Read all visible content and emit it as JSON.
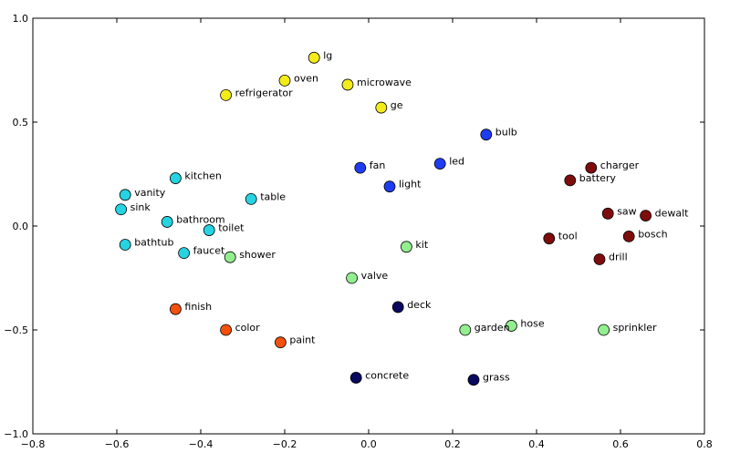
{
  "chart_data": {
    "type": "scatter",
    "title": "",
    "xlabel": "",
    "ylabel": "",
    "xlim": [
      -0.8,
      0.8
    ],
    "ylim": [
      -1.0,
      1.0
    ],
    "grid": false,
    "x_ticks": [
      {
        "value": -0.8,
        "label": "−0.8"
      },
      {
        "value": -0.6,
        "label": "−0.6"
      },
      {
        "value": -0.4,
        "label": "−0.4"
      },
      {
        "value": -0.2,
        "label": "−0.2"
      },
      {
        "value": 0.0,
        "label": "0.0"
      },
      {
        "value": 0.2,
        "label": "0.2"
      },
      {
        "value": 0.4,
        "label": "0.4"
      },
      {
        "value": 0.6,
        "label": "0.6"
      },
      {
        "value": 0.8,
        "label": "0.8"
      }
    ],
    "y_ticks": [
      {
        "value": -1.0,
        "label": "−1.0"
      },
      {
        "value": -0.5,
        "label": "−0.5"
      },
      {
        "value": 0.0,
        "label": "0.0"
      },
      {
        "value": 0.5,
        "label": "0.5"
      },
      {
        "value": 1.0,
        "label": "1.0"
      }
    ],
    "colors": {
      "yellow": "#f3ec19",
      "blue": "#1f3cf2",
      "darkred": "#7f0c0c",
      "cyan": "#26d3e1",
      "lightgreen": "#93ee8f",
      "orange": "#f2500d",
      "navy": "#08095f"
    },
    "points": [
      {
        "label": "lg",
        "x": -0.13,
        "y": 0.81,
        "color": "yellow"
      },
      {
        "label": "oven",
        "x": -0.2,
        "y": 0.7,
        "color": "yellow"
      },
      {
        "label": "microwave",
        "x": -0.05,
        "y": 0.68,
        "color": "yellow"
      },
      {
        "label": "refrigerator",
        "x": -0.34,
        "y": 0.63,
        "color": "yellow"
      },
      {
        "label": "ge",
        "x": 0.03,
        "y": 0.57,
        "color": "yellow"
      },
      {
        "label": "bulb",
        "x": 0.28,
        "y": 0.44,
        "color": "blue"
      },
      {
        "label": "fan",
        "x": -0.02,
        "y": 0.28,
        "color": "blue"
      },
      {
        "label": "led",
        "x": 0.17,
        "y": 0.3,
        "color": "blue"
      },
      {
        "label": "light",
        "x": 0.05,
        "y": 0.19,
        "color": "blue"
      },
      {
        "label": "charger",
        "x": 0.53,
        "y": 0.28,
        "color": "darkred"
      },
      {
        "label": "battery",
        "x": 0.48,
        "y": 0.22,
        "color": "darkred"
      },
      {
        "label": "saw",
        "x": 0.57,
        "y": 0.06,
        "color": "darkred"
      },
      {
        "label": "dewalt",
        "x": 0.66,
        "y": 0.05,
        "color": "darkred"
      },
      {
        "label": "tool",
        "x": 0.43,
        "y": -0.06,
        "color": "darkred"
      },
      {
        "label": "bosch",
        "x": 0.62,
        "y": -0.05,
        "color": "darkred"
      },
      {
        "label": "drill",
        "x": 0.55,
        "y": -0.16,
        "color": "darkred"
      },
      {
        "label": "kitchen",
        "x": -0.46,
        "y": 0.23,
        "color": "cyan"
      },
      {
        "label": "vanity",
        "x": -0.58,
        "y": 0.15,
        "color": "cyan"
      },
      {
        "label": "table",
        "x": -0.28,
        "y": 0.13,
        "color": "cyan"
      },
      {
        "label": "sink",
        "x": -0.59,
        "y": 0.08,
        "color": "cyan"
      },
      {
        "label": "bathroom",
        "x": -0.48,
        "y": 0.02,
        "color": "cyan"
      },
      {
        "label": "toilet",
        "x": -0.38,
        "y": -0.02,
        "color": "cyan"
      },
      {
        "label": "bathtub",
        "x": -0.58,
        "y": -0.09,
        "color": "cyan"
      },
      {
        "label": "faucet",
        "x": -0.44,
        "y": -0.13,
        "color": "cyan"
      },
      {
        "label": "shower",
        "x": -0.33,
        "y": -0.15,
        "color": "lightgreen"
      },
      {
        "label": "kit",
        "x": 0.09,
        "y": -0.1,
        "color": "lightgreen"
      },
      {
        "label": "valve",
        "x": -0.04,
        "y": -0.25,
        "color": "lightgreen"
      },
      {
        "label": "garden",
        "x": 0.23,
        "y": -0.5,
        "color": "lightgreen"
      },
      {
        "label": "hose",
        "x": 0.34,
        "y": -0.48,
        "color": "lightgreen"
      },
      {
        "label": "sprinkler",
        "x": 0.56,
        "y": -0.5,
        "color": "lightgreen"
      },
      {
        "label": "finish",
        "x": -0.46,
        "y": -0.4,
        "color": "orange"
      },
      {
        "label": "color",
        "x": -0.34,
        "y": -0.5,
        "color": "orange"
      },
      {
        "label": "paint",
        "x": -0.21,
        "y": -0.56,
        "color": "orange"
      },
      {
        "label": "deck",
        "x": 0.07,
        "y": -0.39,
        "color": "navy"
      },
      {
        "label": "concrete",
        "x": -0.03,
        "y": -0.73,
        "color": "navy"
      },
      {
        "label": "grass",
        "x": 0.25,
        "y": -0.74,
        "color": "navy"
      }
    ]
  }
}
